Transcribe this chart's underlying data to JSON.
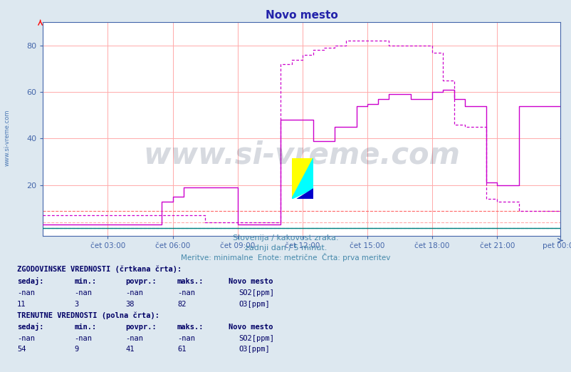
{
  "title": "Novo mesto",
  "title_color": "#2222aa",
  "bg_color": "#dde8f0",
  "plot_bg_color": "#ffffff",
  "grid_color": "#ffaaaa",
  "ytick_color": "#4466aa",
  "xtick_color": "#4466aa",
  "ylabel_values": [
    20,
    40,
    60,
    80
  ],
  "xtick_labels": [
    "čet 03:00",
    "čet 06:00",
    "čet 09:00",
    "čet 12:00",
    "čet 15:00",
    "čet 18:00",
    "čet 21:00",
    "pet 00:00"
  ],
  "xtick_positions": [
    36,
    72,
    108,
    144,
    180,
    216,
    252,
    287
  ],
  "total_points": 288,
  "ymin": -2,
  "ymax": 90,
  "subtitle1": "Slovenija / kakovost zraka.",
  "subtitle2": "zadnji dan / 5 minut.",
  "subtitle3": "Meritve: minimalne  Enote: metrične  Črta: prva meritev",
  "subtitle_color": "#4488aa",
  "so2_color": "#008080",
  "o3_color": "#cc00cc",
  "ref_line1_value": 9,
  "ref_line2_value": 4,
  "ref_line1_color": "#ff6666",
  "ref_line2_color": "#ffaaaa",
  "watermark_text": "www.si-vreme.com",
  "watermark_color": "#223355",
  "watermark_alpha": 0.18,
  "legend_text_hist": "ZGODOVINSKE VREDNOSTI (črtkana črta):",
  "legend_text_curr": "TRENUTNE VREDNOSTI (polna črta):",
  "table_headers": [
    "sedaj:",
    "min.:",
    "povpr.:",
    "maks.:"
  ],
  "hist_so2": {
    "sedaj": "-nan",
    "min": "-nan",
    "povpr": "-nan",
    "maks": "-nan"
  },
  "hist_o3": {
    "sedaj": "11",
    "min": "3",
    "povpr": "38",
    "maks": "82"
  },
  "curr_so2": {
    "sedaj": "-nan",
    "min": "-nan",
    "povpr": "-nan",
    "maks": "-nan"
  },
  "curr_o3": {
    "sedaj": "54",
    "min": "9",
    "povpr": "41",
    "maks": "61"
  }
}
